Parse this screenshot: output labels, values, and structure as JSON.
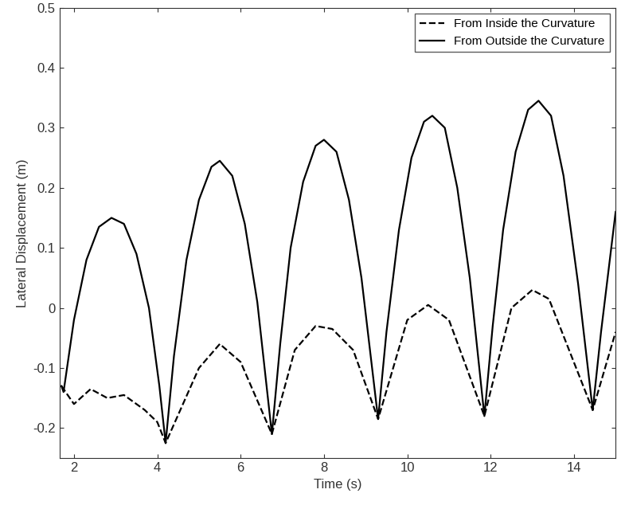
{
  "chart_data": {
    "type": "line",
    "x_label": "Time (s)",
    "y_label": "Lateral Displacement (m)",
    "xlim": [
      1.65,
      15
    ],
    "xticks": [
      2,
      4,
      6,
      8,
      10,
      12,
      14
    ],
    "ylim": [
      -0.25,
      0.5
    ],
    "yticks": [
      -0.2,
      -0.1,
      0,
      0.1,
      0.2,
      0.3,
      0.4,
      0.5
    ],
    "grid": false,
    "legend": "upper right",
    "series": [
      {
        "name": "From Inside the Curvature",
        "color": "#000000",
        "line_style": "dashed",
        "x": [
          1.7,
          2.0,
          2.4,
          2.8,
          3.2,
          3.7,
          4.0,
          4.2,
          5.0,
          5.5,
          6.0,
          6.75,
          7.3,
          7.8,
          8.2,
          8.7,
          9.3,
          10.0,
          10.5,
          11.0,
          11.85,
          12.5,
          13.0,
          13.4,
          14.45,
          15.0
        ],
        "values": [
          -0.13,
          -0.16,
          -0.135,
          -0.15,
          -0.145,
          -0.17,
          -0.19,
          -0.225,
          -0.1,
          -0.06,
          -0.09,
          -0.21,
          -0.07,
          -0.03,
          -0.035,
          -0.07,
          -0.185,
          -0.02,
          0.005,
          -0.02,
          -0.18,
          0.0,
          0.03,
          0.015,
          -0.17,
          -0.04
        ]
      },
      {
        "name": "From Outside the Curvature",
        "color": "#000000",
        "line_style": "solid",
        "x": [
          1.7,
          1.75,
          2.0,
          2.3,
          2.6,
          2.9,
          3.2,
          3.5,
          3.8,
          4.05,
          4.2,
          4.4,
          4.7,
          5.0,
          5.3,
          5.5,
          5.8,
          6.1,
          6.4,
          6.75,
          6.95,
          7.2,
          7.5,
          7.8,
          8.0,
          8.3,
          8.6,
          8.9,
          9.3,
          9.5,
          9.8,
          10.1,
          10.4,
          10.6,
          10.9,
          11.2,
          11.5,
          11.85,
          12.05,
          12.3,
          12.6,
          12.9,
          13.15,
          13.45,
          13.75,
          14.1,
          14.45,
          14.65,
          15.0
        ],
        "values": [
          -0.13,
          -0.14,
          -0.02,
          0.08,
          0.135,
          0.15,
          0.14,
          0.09,
          0.0,
          -0.13,
          -0.225,
          -0.08,
          0.08,
          0.18,
          0.235,
          0.245,
          0.22,
          0.14,
          0.01,
          -0.21,
          -0.06,
          0.1,
          0.21,
          0.27,
          0.28,
          0.26,
          0.18,
          0.05,
          -0.185,
          -0.04,
          0.13,
          0.25,
          0.31,
          0.32,
          0.3,
          0.2,
          0.05,
          -0.18,
          -0.03,
          0.13,
          0.26,
          0.33,
          0.345,
          0.32,
          0.22,
          0.04,
          -0.17,
          -0.04,
          0.16
        ]
      }
    ]
  }
}
